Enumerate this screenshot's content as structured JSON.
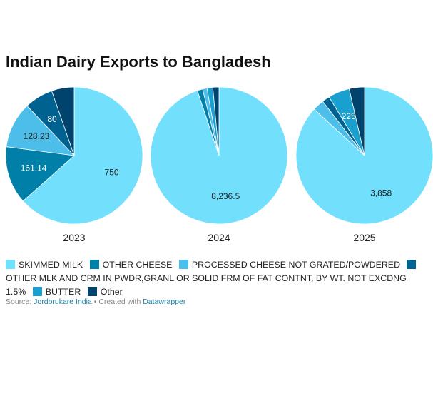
{
  "chart_data": {
    "type": "pie",
    "title": "Indian Dairy Exports to Bangladesh",
    "legend_position": "bottom",
    "categories": [
      "SKIMMED MILK",
      "OTHER CHEESE",
      "PROCESSED CHEESE NOT GRATED/POWDERED",
      "OTHER MLK AND CRM IN PWDR,GRANL OR SOLID FRM OF FAT CONTNT, BY WT. NOT EXCDNG 1.5%",
      "BUTTER",
      "Other"
    ],
    "colors": [
      "#72e0fd",
      "#0080a8",
      "#4dbde9",
      "#006290",
      "#1aa0cf",
      "#00436c"
    ],
    "pies": [
      {
        "label": "2023",
        "values": [
          750,
          161.14,
          128.23,
          80,
          0,
          63
        ],
        "data_labels": [
          "750",
          "161.14",
          "128.23",
          "80",
          "",
          ""
        ]
      },
      {
        "label": "2024",
        "values": [
          8236.5,
          110,
          90,
          0,
          120,
          125
        ],
        "data_labels": [
          "8,236.5",
          "",
          "",
          "",
          "",
          ""
        ]
      },
      {
        "label": "2025",
        "values": [
          3858,
          0,
          120,
          80,
          225,
          160
        ],
        "data_labels": [
          "3,858",
          "",
          "",
          "",
          "225",
          ""
        ]
      }
    ]
  },
  "footer": {
    "source_label": "Source:",
    "source_name": "Jordbrukare India",
    "created_label": "• Created with",
    "tool": "Datawrapper"
  }
}
